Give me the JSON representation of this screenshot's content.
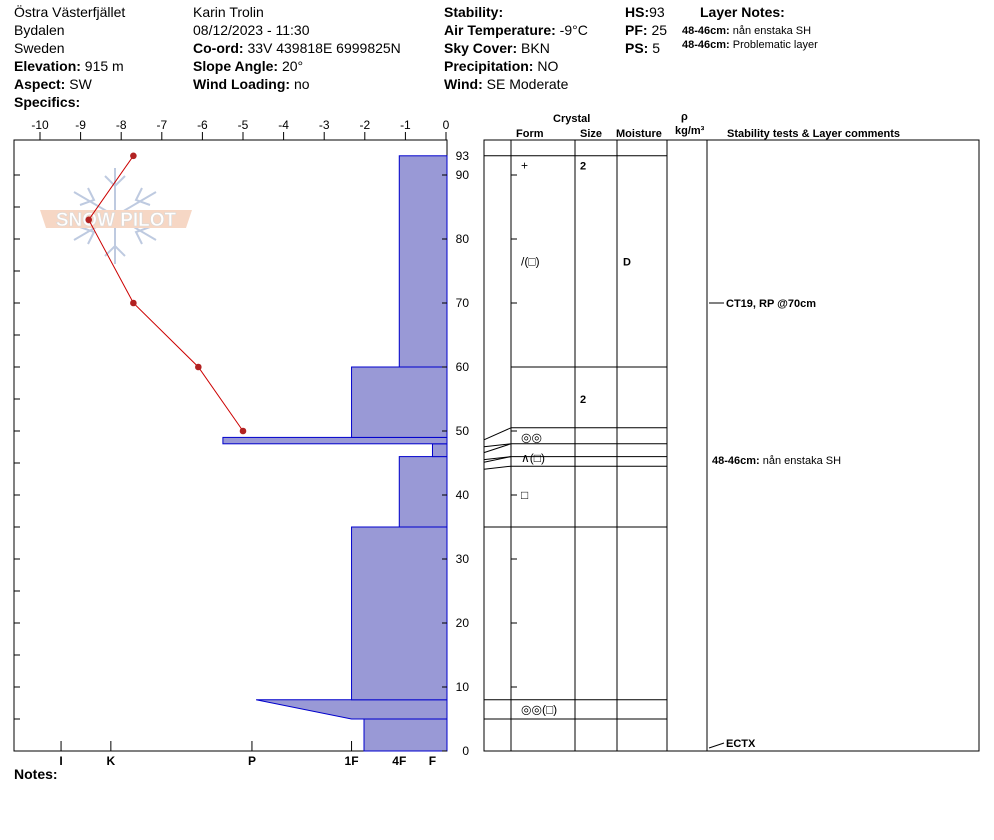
{
  "header": {
    "location": "Östra Västerfjället",
    "region": "Bydalen",
    "country": "Sweden",
    "elevation_label": "Elevation:",
    "elevation_value": "915 m",
    "aspect_label": "Aspect:",
    "aspect_value": "SW",
    "specifics_label": "Specifics:",
    "observer": "Karin  Trolin",
    "datetime": "08/12/2023 - 11:30",
    "coord_label": "Co-ord:",
    "coord_value": "33V 439818E 6999825N",
    "slope_label": "Slope Angle:",
    "slope_value": "20°",
    "wind_loading_label": "Wind Loading:",
    "wind_loading_value": "no",
    "stability_label": "Stability:",
    "stability_value": "",
    "air_temp_label": "Air Temperature:",
    "air_temp_value": "-9°C",
    "sky_label": "Sky Cover:",
    "sky_value": "BKN",
    "precip_label": "Precipitation:",
    "precip_value": "NO",
    "wind_label": "Wind:",
    "wind_value": "SE Moderate",
    "hs_label": "HS:",
    "hs_value": "93",
    "pf_label": "PF:",
    "pf_value": "25",
    "ps_label": "PS:",
    "ps_value": "5",
    "layer_notes_title": "Layer Notes:",
    "layer_notes": [
      {
        "depth": "48-46cm:",
        "text": "nån enstaka SH"
      },
      {
        "depth": "48-46cm:",
        "text": "Problematic layer"
      }
    ]
  },
  "logo_text": "SNOW PILOT",
  "notes_label": "Notes:",
  "table_headers": {
    "crystal": "Crystal",
    "form": "Form",
    "size": "Size",
    "moisture": "Moisture",
    "rho": "ρ",
    "density_unit": "kg/m³",
    "comments": "Stability tests & Layer comments"
  },
  "colors": {
    "hardness_fill": "#9999d6",
    "hardness_stroke": "#0000cc",
    "temp_line": "#cc0000",
    "temp_point": "#b22222"
  },
  "chart_data": {
    "type": "snow-profile",
    "temp_axis": {
      "ticks": [
        "-10",
        "-9",
        "-8",
        "-7",
        "-6",
        "-5",
        "-4",
        "-3",
        "-2",
        "-1",
        "0"
      ],
      "range": [
        -10.5,
        0
      ]
    },
    "height_axis": {
      "ticks": [
        "0",
        "10",
        "20",
        "30",
        "40",
        "50",
        "60",
        "70",
        "80",
        "90"
      ],
      "hs_label": "93",
      "range": [
        0,
        95
      ]
    },
    "hardness_axis": {
      "labels": [
        "I",
        "K",
        "P",
        "1F",
        "4F",
        "F"
      ],
      "label_values": [
        9.3,
        8.1,
        4.7,
        2.3,
        1.15,
        0.35
      ]
    },
    "temperature_profile": [
      {
        "height": 93,
        "temp": -7.7
      },
      {
        "height": 83,
        "temp": -8.8
      },
      {
        "height": 70,
        "temp": -7.7
      },
      {
        "height": 60,
        "temp": -6.1
      },
      {
        "height": 50,
        "temp": -5.0
      }
    ],
    "hardness_layers": [
      {
        "bottom": 0,
        "top": 5,
        "hardness": 2.0
      },
      {
        "bottom": 5,
        "top": 8,
        "hardness": 2.3,
        "hardness_bottom": 2.3,
        "hardness_top": 4.6
      },
      {
        "bottom": 8,
        "top": 35,
        "hardness": 2.3
      },
      {
        "bottom": 35,
        "top": 46,
        "hardness": 1.15
      },
      {
        "bottom": 46,
        "top": 48,
        "hardness": 0.35
      },
      {
        "bottom": 48,
        "top": 49,
        "hardness": 5.4
      },
      {
        "bottom": 49,
        "top": 60,
        "hardness": 2.3
      },
      {
        "bottom": 60,
        "top": 93,
        "hardness": 1.15
      }
    ],
    "layer_boundaries": [
      93,
      60,
      50.5,
      48,
      46,
      44.5,
      35,
      8,
      5
    ],
    "layers": [
      {
        "form": "+",
        "size": "2",
        "moisture": "",
        "at": 91.5
      },
      {
        "form": "/(□)",
        "size": "",
        "moisture": "D",
        "at": 76.5
      },
      {
        "form": "",
        "size": "2",
        "moisture": "",
        "at": 55
      },
      {
        "form": "◎◎",
        "size": "",
        "moisture": "",
        "at": 49
      },
      {
        "form": "∧(□)",
        "size": "",
        "moisture": "",
        "at": 45.8
      },
      {
        "form": "□",
        "size": "",
        "moisture": "",
        "at": 40
      },
      {
        "form": "◎◎(□)",
        "size": "",
        "moisture": "",
        "at": 6.5
      }
    ],
    "stability_tests": [
      {
        "text": "CT19, RP @70cm",
        "height": 70
      },
      {
        "text": "ECTX",
        "height": 0
      }
    ],
    "layer_comments": [
      {
        "depth": "48-46cm:",
        "text": "nån enstaka SH",
        "height": 45.5
      }
    ]
  }
}
